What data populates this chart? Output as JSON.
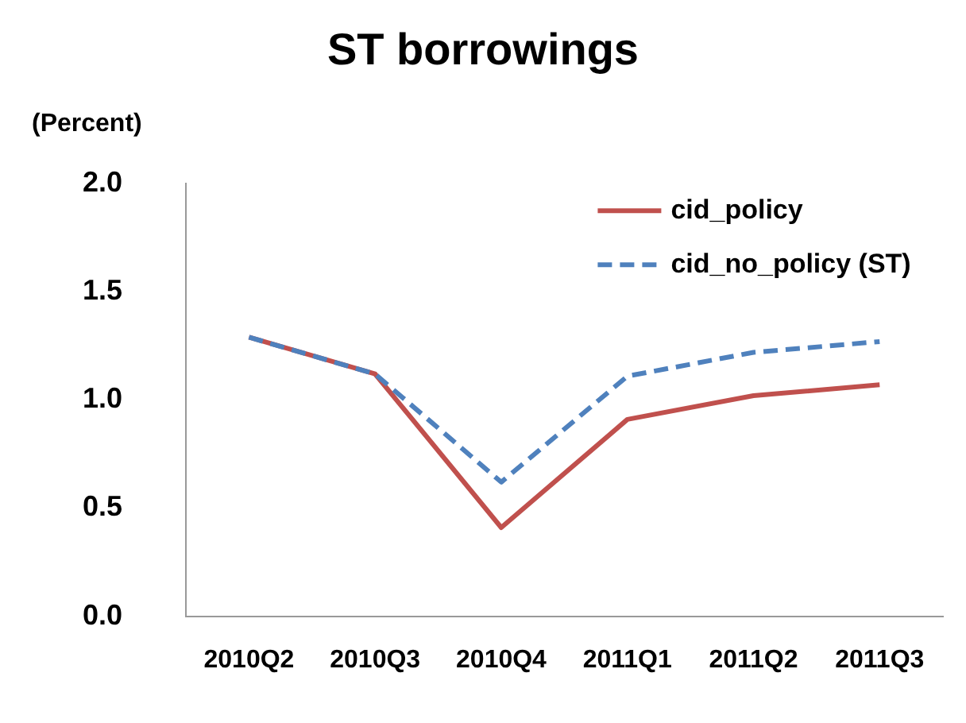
{
  "chart_data": {
    "type": "line",
    "title": "ST borrowings",
    "ylabel": "(Percent)",
    "categories": [
      "2010Q2",
      "2010Q3",
      "2010Q4",
      "2011Q1",
      "2011Q2",
      "2011Q3"
    ],
    "series": [
      {
        "name": "cid_policy",
        "color": "#c0504d",
        "line_style": "solid",
        "values": [
          1.29,
          1.12,
          0.41,
          0.91,
          1.02,
          1.07
        ]
      },
      {
        "name": "cid_no_policy (ST)",
        "color": "#4f81bd",
        "line_style": "dashed",
        "values": [
          1.29,
          1.12,
          0.62,
          1.11,
          1.22,
          1.27
        ]
      }
    ],
    "ylim": [
      0,
      2
    ],
    "yticks": [
      {
        "value": 0,
        "label": "0.0"
      },
      {
        "value": 0.5,
        "label": "0.5"
      },
      {
        "value": 1,
        "label": "1.0"
      },
      {
        "value": 1.5,
        "label": "1.5"
      },
      {
        "value": 2,
        "label": "2.0"
      }
    ],
    "grid": false,
    "legend": "top right",
    "marker": "none"
  }
}
